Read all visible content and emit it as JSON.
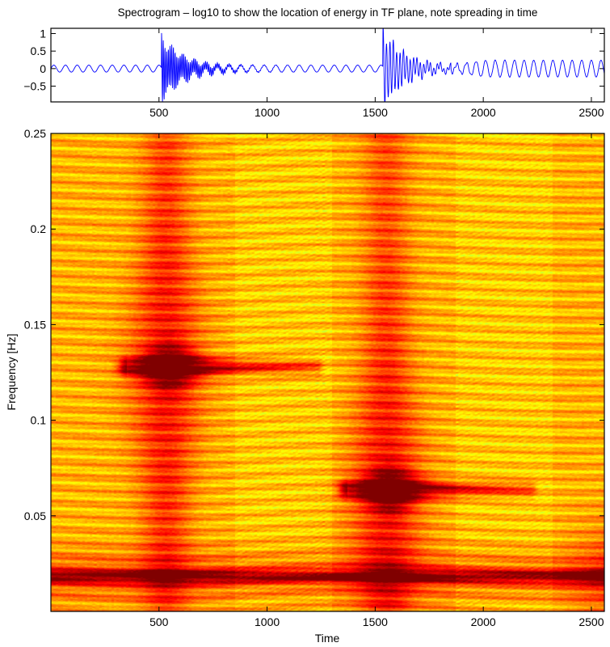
{
  "chart_data": [
    {
      "type": "line",
      "panel": "signal",
      "title": "Spectrogram – log10 to show the location of energy in TF plane, note spreading in time",
      "xlabel": "",
      "ylabel": "",
      "xlim": [
        0,
        2560
      ],
      "ylim": [
        -0.95,
        1.15
      ],
      "xticks": [
        500,
        1000,
        1500,
        2000,
        2500
      ],
      "xtick_labels": [
        "500",
        "1000",
        "1500",
        "2000",
        "2500"
      ],
      "yticks": [
        1,
        0.5,
        0,
        -0.5
      ],
      "ytick_labels": [
        "1",
        "0.5",
        "0",
        "−0.5"
      ],
      "line_color": "#0000ff",
      "series": [
        {
          "name": "background sinusoid",
          "frequency": 0.0185,
          "amplitude": 0.1
        },
        {
          "name": "transient 1",
          "onset": 512,
          "frequency": 0.128,
          "peak_amplitude": 1.0
        },
        {
          "name": "transient 2",
          "onset": 1536,
          "frequency": 0.064,
          "peak_amplitude": 1.15
        }
      ]
    },
    {
      "type": "heatmap",
      "panel": "spectrogram",
      "title": "",
      "xlabel": "Time",
      "ylabel": "Frequency [Hz]",
      "xlim": [
        0,
        2560
      ],
      "ylim": [
        0,
        0.25
      ],
      "xticks": [
        500,
        1000,
        1500,
        2000,
        2500
      ],
      "xtick_labels": [
        "500",
        "1000",
        "1500",
        "2000",
        "2500"
      ],
      "yticks": [
        0.05,
        0.1,
        0.15,
        0.2,
        0.25
      ],
      "ytick_labels": [
        "0.05",
        "0.1",
        "0.15",
        "0.2",
        "0.25"
      ],
      "colormap": "jet",
      "energy_ridges": [
        {
          "time_start": 0,
          "time_end": 2560,
          "frequency": 0.0185
        },
        {
          "time_start": 350,
          "time_peak": 550,
          "time_end": 1230,
          "frequency": 0.128
        },
        {
          "time_start": 1370,
          "time_peak": 1570,
          "time_end": 2220,
          "frequency": 0.064
        }
      ]
    }
  ]
}
